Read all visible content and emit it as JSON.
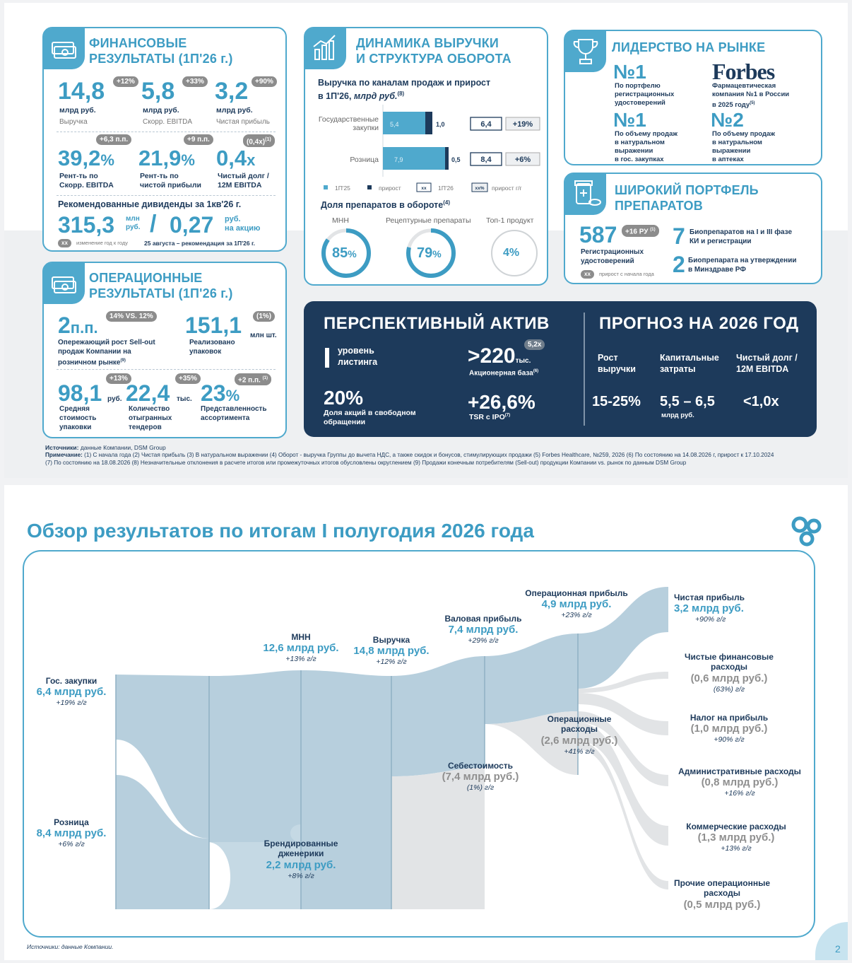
{
  "fin": {
    "title1": "ФИНАНСОВЫЕ",
    "title2": "РЕЗУЛЬТАТЫ (1П'26 г.)",
    "rev_v": "14,8",
    "rev_u": "млрд руб.",
    "rev_l": "Выручка",
    "rev_p": "+12%",
    "ebitda_v": "5,8",
    "ebitda_u": "млрд руб.",
    "ebitda_l": "Скорр. EBITDA",
    "ebitda_p": "+33%",
    "np_v": "3,2",
    "np_u": "млрд руб.",
    "np_l": "Чистая прибыль",
    "np_p": "+90%",
    "m1_v": "39,2",
    "m1_pct": "%",
    "m1_l1": "Рент-ть по",
    "m1_l2": "Скорр. EBITDA",
    "m1_p": "+6,3 п.п.",
    "m2_v": "21,9",
    "m2_pct": "%",
    "m2_l1": "Рент-ть по",
    "m2_l2": "чистой прибыли",
    "m2_p": "+9 п.п.",
    "m3_v": "0,4",
    "m3_x": "x",
    "m3_l1": "Чистый долг /",
    "m3_l2": "12M EBITDA",
    "m3_p": "(0,4x)",
    "m3_sup": "(1)",
    "div_title": "Рекомендованные дивиденды за 1кв'26 г.",
    "div_v1": "315,3",
    "div_u1a": "млн",
    "div_u1b": "руб.",
    "div_slash": "/",
    "div_v2": "0,27",
    "div_u2a": "руб.",
    "div_u2b": "на акцию",
    "foot_xx": "xx",
    "foot_chg": "изменение год к году",
    "foot_rec": "25 августа – рекомендация за 1П'26 г."
  },
  "dyn": {
    "title1": "ДИНАМИКА ВЫРУЧКИ",
    "title2": "И СТРУКТУРА ОБОРОТА",
    "sub1": "Выручка по каналам продаж и прирост",
    "sub2": "в 1П'26,",
    "sub2i": "млрд руб.",
    "sub2s": "(8)",
    "gov_l1": "Государственные",
    "gov_l2": "закупки",
    "gov_base": "5,4",
    "gov_inc": "1,0",
    "gov_tot": "6,4",
    "gov_yoy": "+19%",
    "ret_l": "Розница",
    "ret_base": "7,9",
    "ret_inc": "0,5",
    "ret_tot": "8,4",
    "ret_yoy": "+6%",
    "leg1": "1П'25",
    "leg2": "прирост",
    "leg3b": "xx",
    "leg3": "1П'26",
    "leg4b": "xx%",
    "leg4": "прирост г/г",
    "share_title": "Доля препаратов в обороте",
    "share_sup": "(4)",
    "c1_l": "МНН",
    "c1_v": "85",
    "c1_pct": "%",
    "c2_l": "Рецептурные препараты",
    "c2_v": "79",
    "c2_pct": "%",
    "c3_l": "Топ-1 продукт",
    "c3_v": "4%"
  },
  "lead": {
    "title": "ЛИДЕРСТВО НА РЫНКЕ",
    "a_v": "№1",
    "a_l1": "По портфелю",
    "a_l2": "регистрационных",
    "a_l3": "удостоверений",
    "b_logo": "Forbes",
    "b_l1": "Фармацевтическая",
    "b_l2": "компания  №1 в России",
    "b_l3": "в 2025 году",
    "b_sup": "(5)",
    "c_v": "№1",
    "c_l1": "По объему продаж",
    "c_l2": "в натуральном",
    "c_l3": "выражении",
    "c_l4": "в гос. закупках",
    "d_v": "№2",
    "d_l1": "По объему продаж",
    "d_l2": "в натуральном",
    "d_l3": "выражении",
    "d_l4": "в аптеках"
  },
  "port": {
    "title1": "ШИРОКИЙ ПОРТФЕЛЬ",
    "title2": "ПРЕПАРАТОВ",
    "v": "587",
    "p": "+16 РУ",
    "p_sup": "(1)",
    "l1": "Регистрационных",
    "l2": "удостоверений",
    "xx": "xx",
    "foot": "прирост с начала года",
    "n1": "7",
    "n1_l1": "Биопрепаратов на I и III фазе",
    "n1_l2": "КИ и регистрации",
    "n2": "2",
    "n2_l1": "Биопрепарата на утверждении",
    "n2_l2": "в Минздраве РФ"
  },
  "ops": {
    "title1": "ОПЕРАЦИОННЫЕ",
    "title2": "РЕЗУЛЬТАТЫ (1П'26 г.)",
    "a_v": "2",
    "a_u": "п.п.",
    "a_p": "14% VS. 12%",
    "a_l1": "Опережающий рост Sell-out",
    "a_l2": "продаж Компании на",
    "a_l3": "розничном рынке",
    "a_sup": "(9)",
    "b_v": "151,1",
    "b_u": "млн шт.",
    "b_p": "(1%)",
    "b_l1": "Реализовано",
    "b_l2": "упаковок",
    "c_v": "98,1",
    "c_u": "руб.",
    "c_p": "+13%",
    "c_l1": "Средняя",
    "c_l2": "стоимость",
    "c_l3": "упаковки",
    "d_v": "22,4",
    "d_u": "тыс.",
    "d_p": "+35%",
    "d_l1": "Количество",
    "d_l2": "отыгранных",
    "d_l3": "тендеров",
    "e_v": "23",
    "e_pct": "%",
    "e_p": "+2 п.п.",
    "e_sup": "(1)",
    "e_l1": "Представленность",
    "e_l2": "ассортимента"
  },
  "asset": {
    "title": "ПЕРСПЕКТИВНЫЙ АКТИВ",
    "lvl_v": "I",
    "lvl_l1": "уровень",
    "lvl_l2": "листинга",
    "base_v": ">220",
    "base_u": "тыс.",
    "base_p": "5,2x",
    "base_l": "Акционерная база",
    "base_sup": "(6)",
    "ff_v": "20%",
    "ff_l1": "Доля акций в свободном",
    "ff_l2": "обращении",
    "tsr_v": "+26,6%",
    "tsr_l": "TSR с IPO",
    "tsr_sup": "(7)"
  },
  "fc": {
    "title": "ПРОГНОЗ НА 2026 ГОД",
    "h1a": "Рост",
    "h1b": "выручки",
    "h2a": "Капитальные",
    "h2b": "затраты",
    "h3a": "Чистый долг /",
    "h3b": "12M EBITDA",
    "v1": "15-25%",
    "v2": "5,5 – 6,5",
    "v2u": "млрд руб.",
    "v3": "<1,0x"
  },
  "notes": {
    "src_b": "Источники:",
    "src": " данные Компании, DSM Group",
    "note_b": "Примечание:",
    "note1": " (1) С начала года (2) Чистая прибыль (3) В натуральном выражении (4) Оборот - выручка Группы до вычета НДС, а также скидок и бонусов, стимулирующих продажи (5) Forbes Healthcare, №259, 2026 (6) По состоянию на 14.08.2026 г, прирост к 17.10.2024",
    "note2": "(7) По состоянию на 18.08.2026  (8) Незначительные отклонения в расчете итогов или промежуточных итогов обусловлены округлением (9) Продажи конечным потребителям (Sell-out) продукции Компании vs. рынок по данным DSM Group"
  },
  "s2": {
    "title": "Обзор результатов по итогам I полугодия 2026 года",
    "source": "Источники: данные Компании.",
    "page": "2",
    "gov": {
      "name": "Гос. закупки",
      "val": "6,4 млрд руб.",
      "g": "+19% г/г"
    },
    "ret": {
      "name": "Розница",
      "val": "8,4 млрд руб.",
      "g": "+6% г/г"
    },
    "mnn": {
      "name": "МНН",
      "val": "12,6 млрд руб.",
      "g": "+13% г/г"
    },
    "brand": {
      "name1": "Брендированные",
      "name2": "дженерики",
      "val": "2,2 млрд руб.",
      "g": "+8% г/г"
    },
    "rev": {
      "name": "Выручка",
      "val": "14,8 млрд руб.",
      "g": "+12% г/г"
    },
    "gp": {
      "name": "Валовая прибыль",
      "val": "7,4 млрд руб.",
      "g": "+29% г/г"
    },
    "cogs": {
      "name": "Себестоимость",
      "val": "(7,4 млрд руб.)",
      "g": "(1%) г/г"
    },
    "op": {
      "name": "Операционная прибыль",
      "val": "4,9 млрд руб.",
      "g": "+23% г/г"
    },
    "opex": {
      "name1": "Операционные",
      "name2": "расходы",
      "val": "(2,6 млрд руб.)",
      "g": "+41% г/г"
    },
    "net": {
      "name": "Чистая прибыль",
      "val": "3,2 млрд руб.",
      "g": "+90% г/г"
    },
    "fin": {
      "name1": "Чистые финансовые",
      "name2": "расходы",
      "val": "(0,6 млрд руб.)",
      "g": "(63%) г/г"
    },
    "tax": {
      "name": "Налог на прибыль",
      "val": "(1,0 млрд руб.)",
      "g": "+90% г/г"
    },
    "adm": {
      "name": "Административные расходы",
      "val": "(0,8 млрд руб.)",
      "g": "+16% г/г"
    },
    "com": {
      "name": "Коммерческие расходы",
      "val": "(1,3 млрд руб.)",
      "g": "+13% г/г"
    },
    "oth": {
      "name1": "Прочие операционные",
      "name2": "расходы",
      "val": "(0,5 млрд руб.)"
    }
  },
  "colors": {
    "teal": "#3d9cc3",
    "navy": "#1d3a5b",
    "flow_blue": "#b7cfdd",
    "flow_grey": "#e2e4e6"
  }
}
